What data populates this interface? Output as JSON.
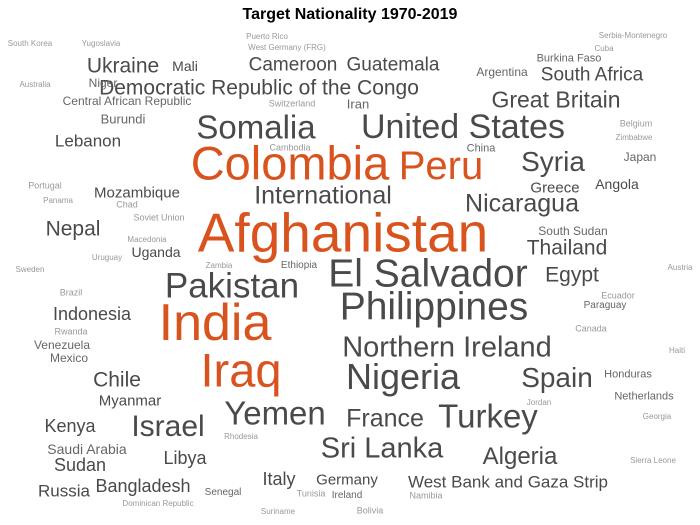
{
  "title": "Target Nationality 1970-2019",
  "colors": {
    "highlight": "#d9531e",
    "dark": "#4a4a4a",
    "mid": "#666666",
    "light": "#999999"
  },
  "words": [
    {
      "text": "Afghanistan",
      "w": 5,
      "tone": "highlight"
    },
    {
      "text": "India",
      "w": 4.7,
      "tone": "highlight"
    },
    {
      "text": "Colombia",
      "w": 4.3,
      "tone": "highlight"
    },
    {
      "text": "Peru",
      "w": 3.6,
      "tone": "highlight"
    },
    {
      "text": "Iraq",
      "w": 4.3,
      "tone": "highlight"
    },
    {
      "text": "Philippines",
      "w": 3.5,
      "tone": "dark"
    },
    {
      "text": "El Salvador",
      "w": 3.5,
      "tone": "dark"
    },
    {
      "text": "Pakistan",
      "w": 3.2,
      "tone": "dark"
    },
    {
      "text": "Nigeria",
      "w": 3.3,
      "tone": "dark"
    },
    {
      "text": "United States",
      "w": 3.1,
      "tone": "dark"
    },
    {
      "text": "Somalia",
      "w": 3.0,
      "tone": "dark"
    },
    {
      "text": "Yemen",
      "w": 3.0,
      "tone": "dark"
    },
    {
      "text": "Turkey",
      "w": 3.0,
      "tone": "dark"
    },
    {
      "text": "Northern Ireland",
      "w": 2.6,
      "tone": "dark"
    },
    {
      "text": "Israel",
      "w": 2.7,
      "tone": "dark"
    },
    {
      "text": "Sri Lanka",
      "w": 2.6,
      "tone": "dark"
    },
    {
      "text": "Syria",
      "w": 2.5,
      "tone": "dark"
    },
    {
      "text": "Spain",
      "w": 2.5,
      "tone": "dark"
    },
    {
      "text": "International",
      "w": 2.3,
      "tone": "dark"
    },
    {
      "text": "Nicaragua",
      "w": 2.3,
      "tone": "dark"
    },
    {
      "text": "France",
      "w": 2.3,
      "tone": "dark"
    },
    {
      "text": "Algeria",
      "w": 2.2,
      "tone": "dark"
    },
    {
      "text": "Great Britain",
      "w": 2.1,
      "tone": "dark"
    },
    {
      "text": "Democratic Republic of the Congo",
      "w": 1.9,
      "tone": "dark"
    },
    {
      "text": "Ukraine",
      "w": 1.9,
      "tone": "dark"
    },
    {
      "text": "Chile",
      "w": 1.9,
      "tone": "dark"
    },
    {
      "text": "Thailand",
      "w": 1.9,
      "tone": "dark"
    },
    {
      "text": "Egypt",
      "w": 1.9,
      "tone": "dark"
    },
    {
      "text": "Nepal",
      "w": 1.9,
      "tone": "dark"
    },
    {
      "text": "Cameroon",
      "w": 1.7,
      "tone": "dark"
    },
    {
      "text": "Guatemala",
      "w": 1.7,
      "tone": "dark"
    },
    {
      "text": "South Africa",
      "w": 1.7,
      "tone": "dark"
    },
    {
      "text": "Indonesia",
      "w": 1.6,
      "tone": "dark"
    },
    {
      "text": "Italy",
      "w": 1.6,
      "tone": "dark"
    },
    {
      "text": "Bangladesh",
      "w": 1.6,
      "tone": "dark"
    },
    {
      "text": "Libya",
      "w": 1.6,
      "tone": "dark"
    },
    {
      "text": "Sudan",
      "w": 1.6,
      "tone": "dark"
    },
    {
      "text": "Kenya",
      "w": 1.6,
      "tone": "dark"
    },
    {
      "text": "Russia",
      "w": 1.5,
      "tone": "dark"
    },
    {
      "text": "Lebanon",
      "w": 1.5,
      "tone": "dark"
    },
    {
      "text": "West Bank and Gaza Strip",
      "w": 1.5,
      "tone": "dark"
    },
    {
      "text": "Germany",
      "w": 1.4,
      "tone": "dark"
    },
    {
      "text": "Mozambique",
      "w": 1.4,
      "tone": "dark"
    },
    {
      "text": "Myanmar",
      "w": 1.4,
      "tone": "dark"
    },
    {
      "text": "Greece",
      "w": 1.4,
      "tone": "dark"
    },
    {
      "text": "Angola",
      "w": 1.3,
      "tone": "dark"
    },
    {
      "text": "Mali",
      "w": 1.3,
      "tone": "dark"
    },
    {
      "text": "Uganda",
      "w": 1.3,
      "tone": "dark"
    },
    {
      "text": "Saudi Arabia",
      "w": 1.3,
      "tone": "mid"
    },
    {
      "text": "Argentina",
      "w": 1.1,
      "tone": "mid"
    },
    {
      "text": "Burundi",
      "w": 1.2,
      "tone": "mid"
    },
    {
      "text": "Iran",
      "w": 1.2,
      "tone": "mid"
    },
    {
      "text": "South Sudan",
      "w": 1.1,
      "tone": "mid"
    },
    {
      "text": "Japan",
      "w": 1.1,
      "tone": "mid"
    },
    {
      "text": "Niger",
      "w": 1.1,
      "tone": "mid"
    },
    {
      "text": "Central African Republic",
      "w": 1.1,
      "tone": "mid"
    },
    {
      "text": "Mexico",
      "w": 1.1,
      "tone": "mid"
    },
    {
      "text": "Venezuela",
      "w": 1.1,
      "tone": "mid"
    },
    {
      "text": "Burkina Faso",
      "w": 1.0,
      "tone": "mid"
    },
    {
      "text": "Honduras",
      "w": 1.0,
      "tone": "mid"
    },
    {
      "text": "Netherlands",
      "w": 1.0,
      "tone": "mid"
    },
    {
      "text": "China",
      "w": 1.0,
      "tone": "mid"
    },
    {
      "text": "Paraguay",
      "w": 0.9,
      "tone": "mid"
    },
    {
      "text": "Ethiopia",
      "w": 0.9,
      "tone": "mid"
    },
    {
      "text": "Ireland",
      "w": 0.9,
      "tone": "mid"
    },
    {
      "text": "Senegal",
      "w": 0.9,
      "tone": "mid"
    },
    {
      "text": "Switzerland",
      "w": 0.8,
      "tone": "light"
    },
    {
      "text": "Soviet Union",
      "w": 0.8,
      "tone": "light"
    },
    {
      "text": "Jordan",
      "w": 0.7,
      "tone": "light"
    },
    {
      "text": "Rwanda",
      "w": 0.8,
      "tone": "light"
    },
    {
      "text": "Canada",
      "w": 0.8,
      "tone": "light"
    },
    {
      "text": "Ecuador",
      "w": 0.8,
      "tone": "light"
    },
    {
      "text": "Belgium",
      "w": 0.8,
      "tone": "light"
    },
    {
      "text": "Portugal",
      "w": 0.8,
      "tone": "light"
    },
    {
      "text": "Chad",
      "w": 0.8,
      "tone": "light"
    },
    {
      "text": "Cambodia",
      "w": 0.8,
      "tone": "light"
    },
    {
      "text": "Brazil",
      "w": 0.8,
      "tone": "light"
    },
    {
      "text": "Tunisia",
      "w": 0.8,
      "tone": "light"
    },
    {
      "text": "Namibia",
      "w": 0.8,
      "tone": "light"
    },
    {
      "text": "Bolivia",
      "w": 0.8,
      "tone": "light"
    },
    {
      "text": "Rhodesia",
      "w": 0.7,
      "tone": "light"
    },
    {
      "text": "Macedonia",
      "w": 0.7,
      "tone": "light"
    },
    {
      "text": "Uruguay",
      "w": 0.7,
      "tone": "light"
    },
    {
      "text": "Zambia",
      "w": 0.7,
      "tone": "light"
    },
    {
      "text": "Cuba",
      "w": 0.7,
      "tone": "light"
    },
    {
      "text": "Serbia-Montenegro",
      "w": 0.7,
      "tone": "light"
    },
    {
      "text": "Puerto Rico",
      "w": 0.7,
      "tone": "light"
    },
    {
      "text": "West Germany (FRG)",
      "w": 0.7,
      "tone": "light"
    },
    {
      "text": "Yugoslavia",
      "w": 0.7,
      "tone": "light"
    },
    {
      "text": "South Korea",
      "w": 0.7,
      "tone": "light"
    },
    {
      "text": "Australia",
      "w": 0.7,
      "tone": "light"
    },
    {
      "text": "Panama",
      "w": 0.7,
      "tone": "light"
    },
    {
      "text": "Sweden",
      "w": 0.7,
      "tone": "light"
    },
    {
      "text": "Austria",
      "w": 0.7,
      "tone": "light"
    },
    {
      "text": "Haiti",
      "w": 0.7,
      "tone": "light"
    },
    {
      "text": "Georgia",
      "w": 0.7,
      "tone": "light"
    },
    {
      "text": "Sierra Leone",
      "w": 0.7,
      "tone": "light"
    },
    {
      "text": "Zimbabwe",
      "w": 0.7,
      "tone": "light"
    },
    {
      "text": "Dominican Republic",
      "w": 0.7,
      "tone": "light"
    },
    {
      "text": "Suriname",
      "w": 0.7,
      "tone": "light"
    }
  ]
}
